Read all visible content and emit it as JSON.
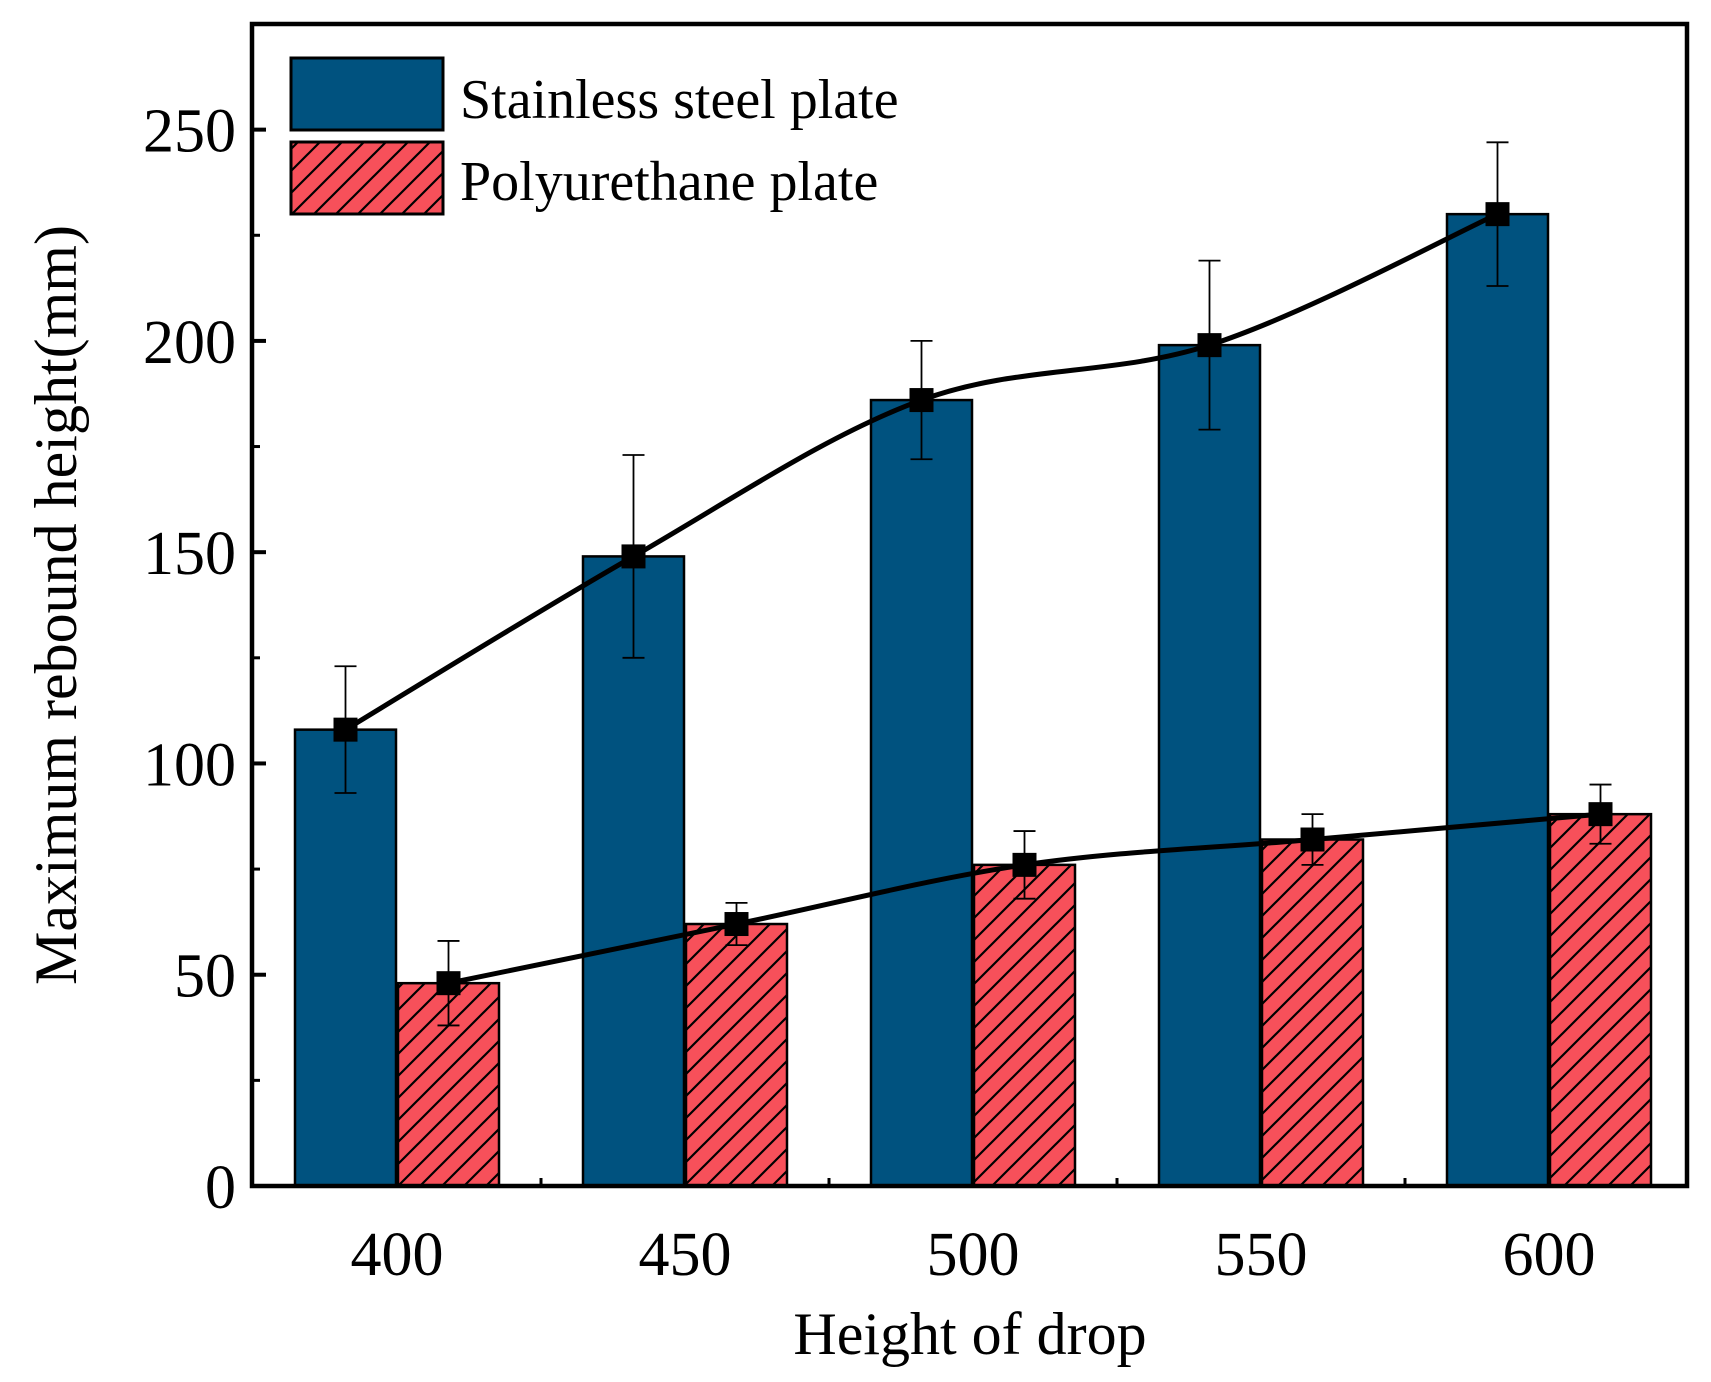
{
  "chart_data": {
    "type": "bar",
    "title": "",
    "xlabel": "Height of drop",
    "ylabel": "Maximum rebound height(mm)",
    "categories": [
      "400",
      "450",
      "500",
      "550",
      "600"
    ],
    "ylim": [
      0,
      275
    ],
    "yticks": [
      0,
      50,
      100,
      150,
      200,
      250
    ],
    "grid": false,
    "legend_position": "top-left",
    "series": [
      {
        "name": "Stainless steel plate",
        "color": "#00527f",
        "pattern": "solid",
        "values": [
          108,
          149,
          186,
          199,
          230
        ],
        "errors": [
          15,
          24,
          14,
          20,
          17
        ]
      },
      {
        "name": "Polyurethane plate",
        "color": "#f7505a",
        "pattern": "diagonal-hatch",
        "values": [
          48,
          62,
          76,
          82,
          88
        ],
        "errors": [
          10,
          5,
          8,
          6,
          7
        ]
      }
    ],
    "trend_lines": "smooth curve through the means of each series with square markers"
  }
}
